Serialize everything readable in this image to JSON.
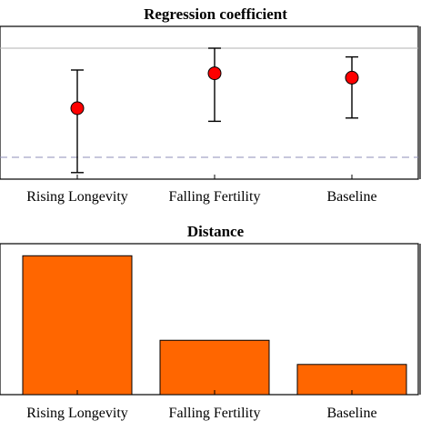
{
  "charts": {
    "top_title": "Regression coefficient",
    "bottom_title": "Distance"
  },
  "chart_data": [
    {
      "type": "scatter",
      "title": "Regression coefficient",
      "categories": [
        "Rising Longevity",
        "Falling Fertility",
        "Baseline"
      ],
      "series": [
        {
          "values": [
            0.45,
            0.77,
            0.73
          ],
          "error_low": [
            -0.14,
            0.33,
            0.36
          ],
          "error_high": [
            0.8,
            1.0,
            0.92
          ]
        }
      ],
      "reference_lines": [
        {
          "value": 1.0,
          "style": "solid",
          "color": "#b0b0b0"
        },
        {
          "value": 0.0,
          "style": "dashed",
          "color": "#8f8fb8"
        }
      ],
      "marker_color": "#ff0000",
      "ylim": [
        -0.2,
        1.2
      ],
      "grid": false
    },
    {
      "type": "bar",
      "title": "Distance",
      "categories": [
        "Rising Longevity",
        "Falling Fertility",
        "Baseline"
      ],
      "values": [
        0.92,
        0.36,
        0.2
      ],
      "bar_color": "#ff6600",
      "ylim": [
        0,
        1.0
      ],
      "grid": false
    }
  ]
}
